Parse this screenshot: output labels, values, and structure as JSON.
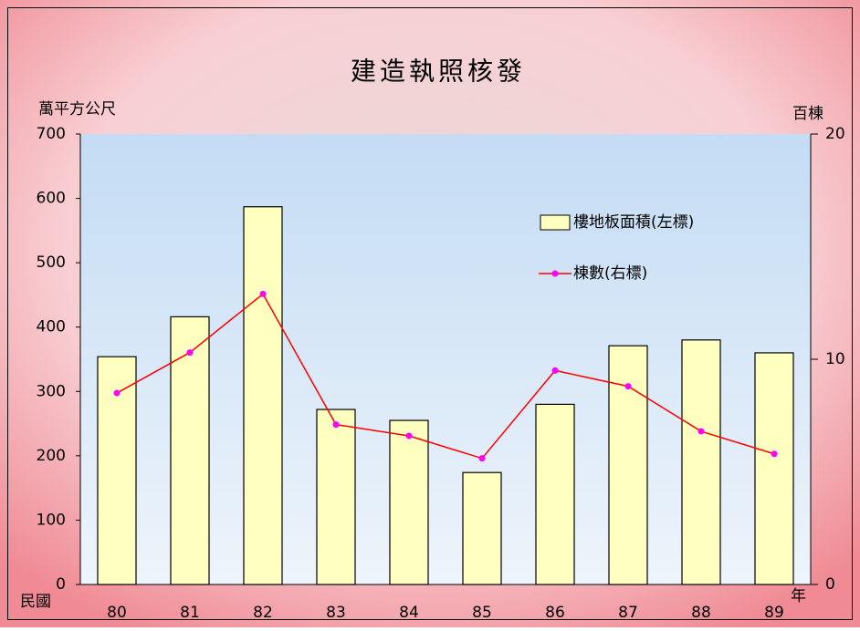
{
  "chart_data": {
    "type": "bar_line",
    "title": "建造執照核發",
    "ylabel": "萬平方公尺",
    "y2label": "百棟",
    "xlabel_left": "民國",
    "xlabel_right": "年",
    "categories": [
      "80",
      "81",
      "82",
      "83",
      "84",
      "85",
      "86",
      "87",
      "88",
      "89"
    ],
    "series": [
      {
        "name": "樓地板面積(左標)",
        "type": "bar",
        "color": "#ffffc0",
        "values": [
          354,
          416,
          587,
          272,
          255,
          174,
          280,
          371,
          380,
          360
        ]
      },
      {
        "name": "棟數(右標)",
        "type": "line",
        "axis": "y2",
        "color": "#ff0000",
        "marker_color": "#ff00ff",
        "values": [
          8.5,
          10.3,
          12.9,
          7.1,
          6.6,
          5.6,
          9.5,
          8.8,
          6.8,
          5.8
        ]
      }
    ],
    "ylim": [
      0,
      700
    ],
    "yticks": [
      0,
      100,
      200,
      300,
      400,
      500,
      600,
      700
    ],
    "y2lim": [
      0,
      20
    ],
    "y2ticks": [
      0,
      10,
      20
    ]
  }
}
